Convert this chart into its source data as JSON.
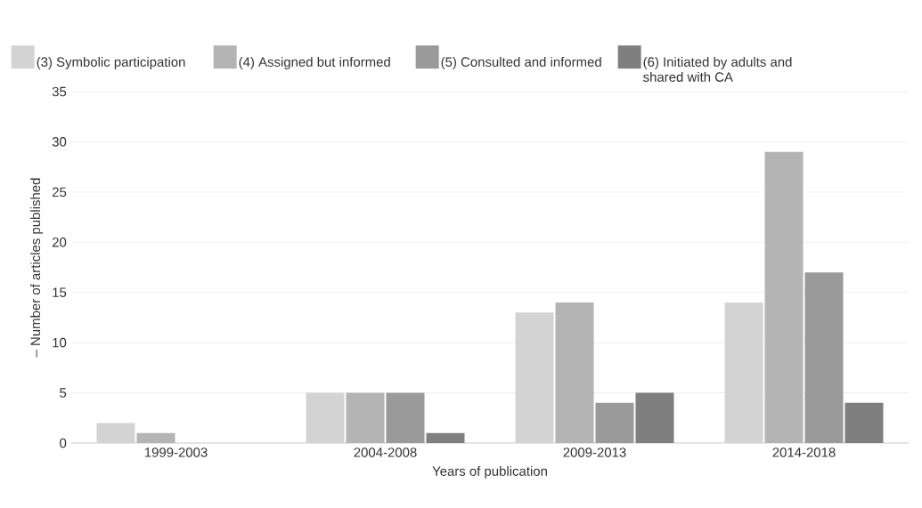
{
  "chart_data": {
    "type": "bar",
    "xlabel": "Years of publication",
    "ylabel": "– Number of articles published",
    "categories": [
      "1999-2003",
      "2004-2008",
      "2009-2013",
      "2014-2018"
    ],
    "series": [
      {
        "name": "(3) Symbolic participation",
        "color": "#d3d3d3",
        "values": [
          2,
          5,
          13,
          14
        ]
      },
      {
        "name": "(4) Assigned but informed",
        "color": "#b4b4b4",
        "values": [
          1,
          5,
          14,
          29
        ]
      },
      {
        "name": "(5) Consulted and informed",
        "color": "#9a9a9a",
        "values": [
          0,
          5,
          4,
          17
        ]
      },
      {
        "name": "(6) Initiated by adults and shared with CA",
        "color": "#7f7f7f",
        "values": [
          0,
          1,
          5,
          4
        ]
      }
    ],
    "ylim": [
      0,
      35
    ],
    "yticks": [
      0,
      5,
      10,
      15,
      20,
      25,
      30,
      35
    ],
    "grid": "y",
    "legend": "top"
  }
}
